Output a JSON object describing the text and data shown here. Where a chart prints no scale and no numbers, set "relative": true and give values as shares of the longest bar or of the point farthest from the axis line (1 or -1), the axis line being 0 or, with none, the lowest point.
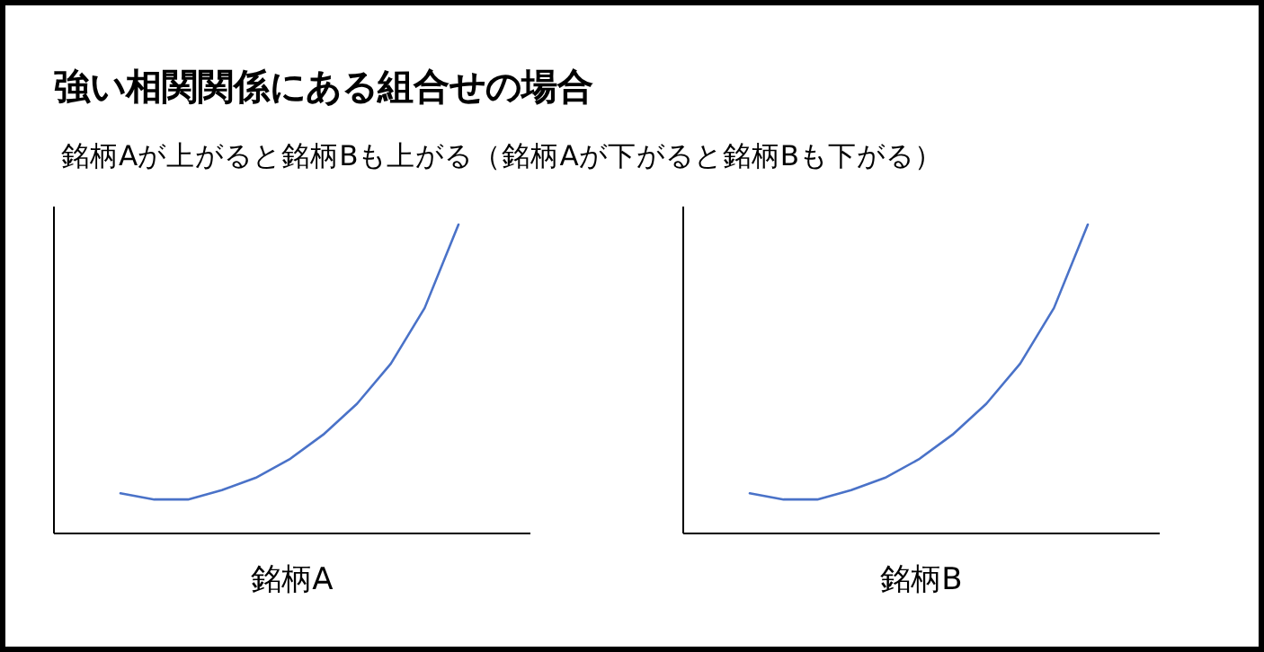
{
  "chart_data": [
    {
      "type": "line",
      "title": "強い相関関係にある組合せの場合",
      "subtitle": "銘柄Aが上がると銘柄Bも上がる（銘柄Aが下がると銘柄Bも下がる）",
      "xlabel": "銘柄A",
      "relative": true,
      "categories": [
        null,
        null,
        null,
        null,
        null,
        null,
        null,
        null,
        null,
        null,
        null
      ],
      "series": [
        {
          "color": "#4a72c8",
          "values": [
            0.13,
            0.11,
            0.11,
            0.14,
            0.18,
            0.24,
            0.32,
            0.42,
            0.55,
            0.73,
            1
          ]
        }
      ]
    },
    {
      "type": "line",
      "xlabel": "銘柄B",
      "relative": true,
      "categories": [
        null,
        null,
        null,
        null,
        null,
        null,
        null,
        null,
        null,
        null,
        null
      ],
      "series": [
        {
          "color": "#4a72c8",
          "values": [
            0.13,
            0.11,
            0.11,
            0.14,
            0.18,
            0.24,
            0.32,
            0.42,
            0.55,
            0.73,
            1
          ]
        }
      ]
    }
  ]
}
